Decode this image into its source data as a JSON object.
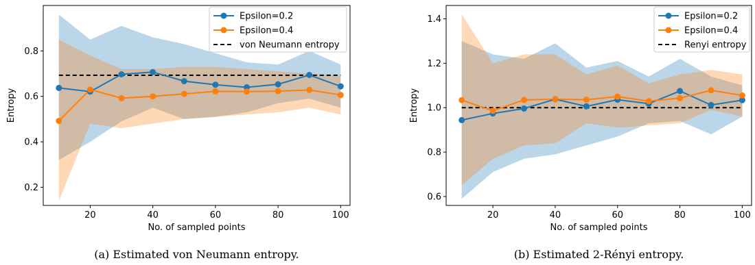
{
  "chart_data": [
    {
      "type": "line",
      "xlabel": "No. of sampled points",
      "ylabel": "Entropy",
      "caption": "(a) Estimated von Neumann entropy.",
      "xlim": [
        5,
        103
      ],
      "ylim": [
        0.12,
        1.0
      ],
      "xticks": [
        20,
        40,
        60,
        80,
        100
      ],
      "yticks": [
        0.2,
        0.4,
        0.6,
        0.8
      ],
      "ytick_decimals": 1,
      "x": [
        10,
        20,
        30,
        40,
        50,
        60,
        70,
        80,
        90,
        100
      ],
      "series": [
        {
          "name": "Epsilon=0.2",
          "color": "#1f77b4",
          "values": [
            0.637,
            0.621,
            0.697,
            0.707,
            0.667,
            0.651,
            0.64,
            0.653,
            0.694,
            0.644
          ],
          "lower": [
            0.32,
            0.4,
            0.49,
            0.55,
            0.5,
            0.51,
            0.53,
            0.57,
            0.59,
            0.55
          ],
          "upper": [
            0.96,
            0.85,
            0.91,
            0.86,
            0.83,
            0.79,
            0.75,
            0.74,
            0.8,
            0.74
          ]
        },
        {
          "name": "Epsilon=0.4",
          "color": "#ff7f0e",
          "values": [
            0.492,
            0.63,
            0.592,
            0.6,
            0.611,
            0.622,
            0.621,
            0.623,
            0.628,
            0.606
          ],
          "lower": [
            0.14,
            0.48,
            0.46,
            0.48,
            0.5,
            0.51,
            0.52,
            0.53,
            0.55,
            0.52
          ],
          "upper": [
            0.85,
            0.78,
            0.72,
            0.72,
            0.73,
            0.73,
            0.72,
            0.71,
            0.7,
            0.69
          ]
        }
      ],
      "reference": {
        "name": "von Neumann entropy",
        "value": 0.693,
        "color": "#000000"
      }
    },
    {
      "type": "line",
      "xlabel": "No. of sampled points",
      "ylabel": "Entropy",
      "caption": "(b) Estimated 2-Rényi entropy.",
      "xlim": [
        5,
        103
      ],
      "ylim": [
        0.56,
        1.46
      ],
      "xticks": [
        20,
        40,
        60,
        80,
        100
      ],
      "yticks": [
        0.6,
        0.8,
        1.0,
        1.2,
        1.4
      ],
      "ytick_decimals": 1,
      "x": [
        10,
        20,
        30,
        40,
        50,
        60,
        70,
        80,
        90,
        100
      ],
      "series": [
        {
          "name": "Epsilon=0.2",
          "color": "#1f77b4",
          "values": [
            0.944,
            0.974,
            0.996,
            1.038,
            1.006,
            1.036,
            1.018,
            1.075,
            1.012,
            1.034
          ],
          "lower": [
            0.59,
            0.71,
            0.77,
            0.79,
            0.83,
            0.87,
            0.93,
            0.94,
            0.88,
            0.96
          ],
          "upper": [
            1.3,
            1.24,
            1.22,
            1.29,
            1.18,
            1.21,
            1.14,
            1.22,
            1.14,
            1.1
          ]
        },
        {
          "name": "Epsilon=0.4",
          "color": "#ff7f0e",
          "values": [
            1.034,
            0.986,
            1.035,
            1.038,
            1.036,
            1.05,
            1.029,
            1.043,
            1.078,
            1.055
          ],
          "lower": [
            0.65,
            0.77,
            0.83,
            0.84,
            0.93,
            0.91,
            0.92,
            0.93,
            0.99,
            0.96
          ],
          "upper": [
            1.42,
            1.2,
            1.24,
            1.24,
            1.15,
            1.19,
            1.11,
            1.15,
            1.17,
            1.15
          ]
        }
      ],
      "reference": {
        "name": "Renyi entropy",
        "value": 1.0,
        "color": "#000000"
      }
    }
  ]
}
